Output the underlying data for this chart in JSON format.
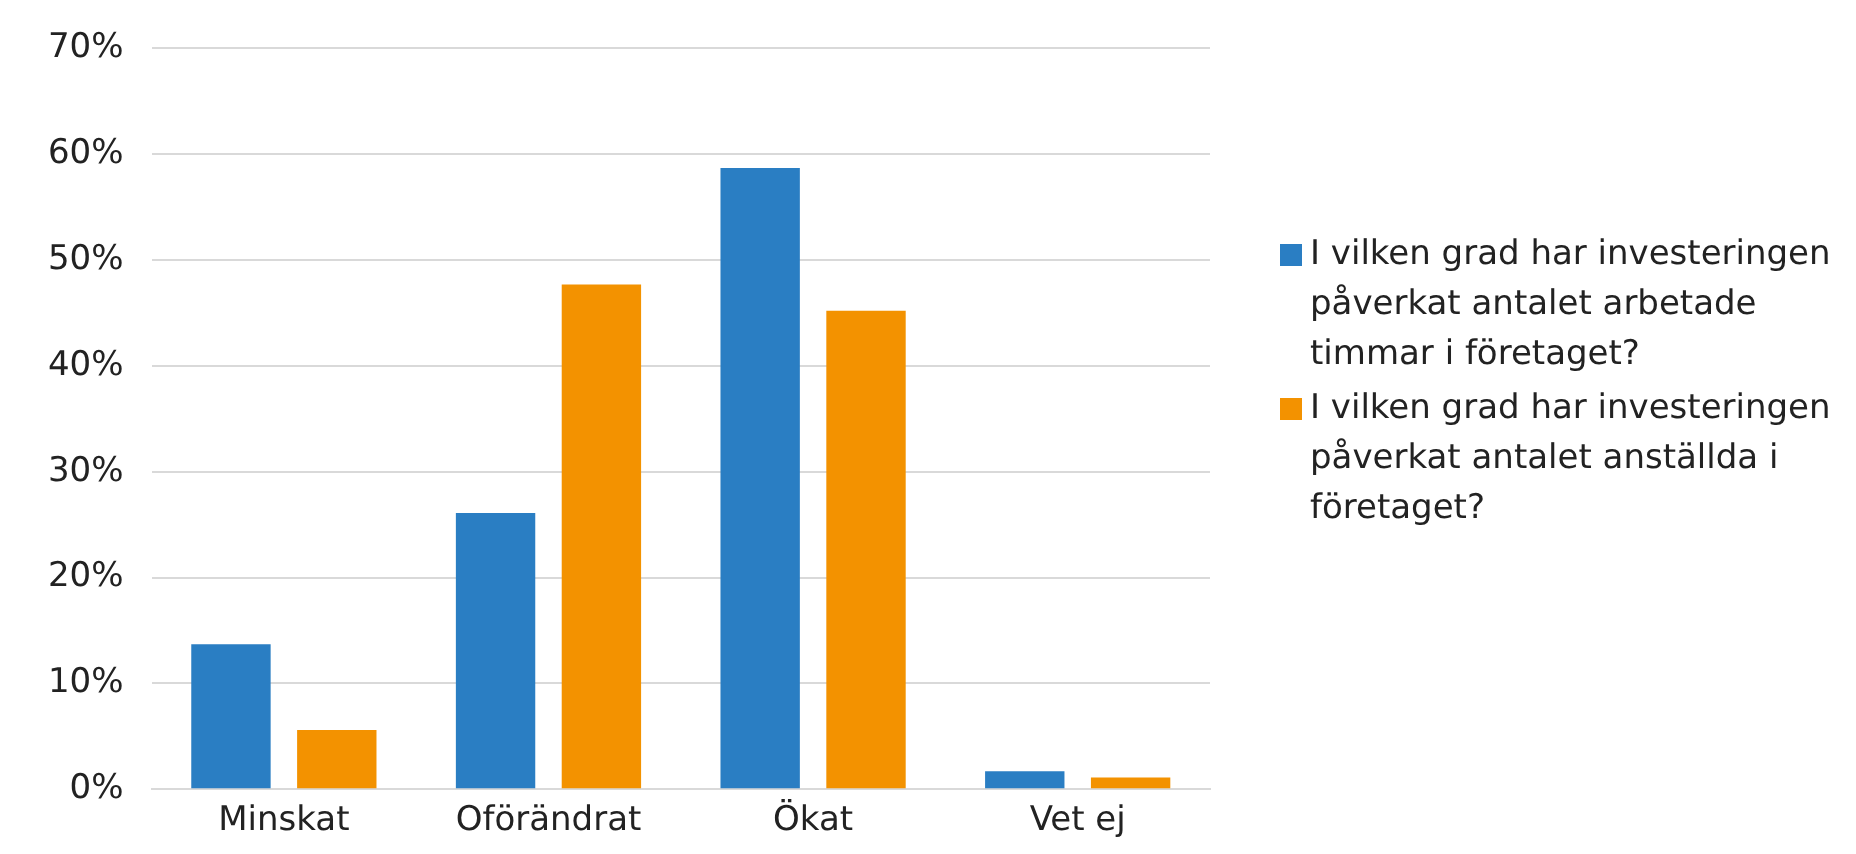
{
  "chart_data": {
    "type": "bar",
    "categories": [
      "Minskat",
      "Oförändrat",
      "Ökat",
      "Vet ej"
    ],
    "series": [
      {
        "name": "I vilken grad har investeringen påverkat antalet arbetade timmar i företaget?",
        "color": "#2a7ec3",
        "values": [
          13.7,
          26.1,
          58.7,
          1.7
        ]
      },
      {
        "name": "I vilken grad har investeringen påverkat antalet anställda i företaget?",
        "color": "#f39200",
        "values": [
          5.6,
          47.7,
          45.2,
          1.1
        ]
      }
    ],
    "ylim": [
      0,
      70
    ],
    "yticks": [
      {
        "value": 0,
        "label": "0%"
      },
      {
        "value": 10,
        "label": "10%"
      },
      {
        "value": 20,
        "label": "20%"
      },
      {
        "value": 30,
        "label": "30%"
      },
      {
        "value": 40,
        "label": "40%"
      },
      {
        "value": 50,
        "label": "50%"
      },
      {
        "value": 60,
        "label": "60%"
      },
      {
        "value": 70,
        "label": "70%"
      }
    ],
    "grid": "y",
    "legend": "right"
  }
}
